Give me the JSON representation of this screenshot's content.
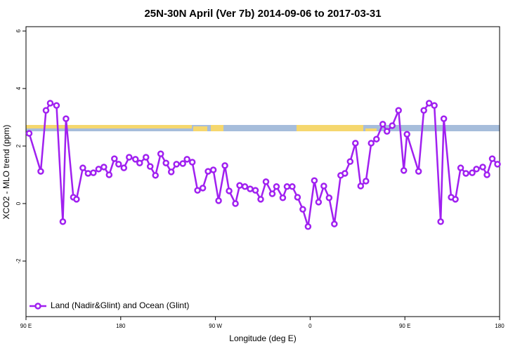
{
  "chart_data": {
    "type": "line",
    "title": "25N-30N April (Ver 7b)   2014-09-06 to 2017-03-31",
    "xlabel": "Longitude (deg E)",
    "ylabel": "XCO2 - MLO trend (ppm)",
    "xlim": [
      90,
      540
    ],
    "xticks": [
      {
        "value": 90,
        "label": "90 E"
      },
      180,
      {
        "value": 270,
        "label": "90 W"
      },
      {
        "value": 360,
        "label": "0"
      },
      {
        "value": 450,
        "label": "90 E"
      },
      {
        "value": 540,
        "label": "180"
      }
    ],
    "ylim": [
      -3.93,
      6.15
    ],
    "yticks": [
      -2,
      0,
      2,
      4,
      6
    ],
    "legend": "bottom-left",
    "series": [
      {
        "name": "Land (Nadir&Glint) and Ocean (Glint)",
        "color": "#a020f0",
        "x": [
          93,
          104,
          109,
          113,
          119,
          125,
          128,
          135,
          138,
          144,
          149,
          154,
          159,
          164,
          169,
          174,
          178,
          183,
          188,
          194,
          198,
          204,
          208,
          213,
          218,
          223,
          228,
          233,
          239,
          243,
          248,
          253,
          258,
          263,
          268,
          273,
          279,
          283,
          289,
          293,
          298,
          303,
          308,
          313,
          318,
          324,
          328,
          334,
          338,
          343,
          348,
          353,
          358,
          364,
          368,
          373,
          378,
          383,
          389,
          393,
          398,
          403,
          408,
          413,
          418,
          423,
          429,
          433,
          438,
          444,
          449,
          452,
          463,
          468,
          473,
          478,
          484,
          487,
          494,
          498,
          503,
          508,
          514,
          518,
          524,
          528,
          533,
          538
        ],
        "values": [
          2.44,
          1.12,
          3.24,
          3.49,
          3.41,
          -0.63,
          2.95,
          0.22,
          0.15,
          1.24,
          1.05,
          1.07,
          1.2,
          1.27,
          1.0,
          1.56,
          1.37,
          1.24,
          1.61,
          1.54,
          1.41,
          1.61,
          1.29,
          0.98,
          1.73,
          1.41,
          1.1,
          1.37,
          1.39,
          1.54,
          1.44,
          0.46,
          0.54,
          1.12,
          1.17,
          0.1,
          1.32,
          0.44,
          0.0,
          0.63,
          0.59,
          0.51,
          0.46,
          0.15,
          0.76,
          0.34,
          0.59,
          0.2,
          0.59,
          0.59,
          0.22,
          -0.2,
          -0.8,
          0.8,
          0.05,
          0.61,
          0.2,
          -0.71,
          0.98,
          1.05,
          1.46,
          2.1,
          0.61,
          0.78,
          2.1,
          2.24,
          2.76,
          2.51,
          2.71,
          3.24,
          1.15,
          2.41,
          1.12,
          3.24,
          3.49,
          3.41,
          -0.63,
          2.95,
          0.22,
          0.15,
          1.24,
          1.05,
          1.07,
          1.2,
          1.27,
          1.0,
          1.56,
          1.37
        ]
      }
    ]
  }
}
